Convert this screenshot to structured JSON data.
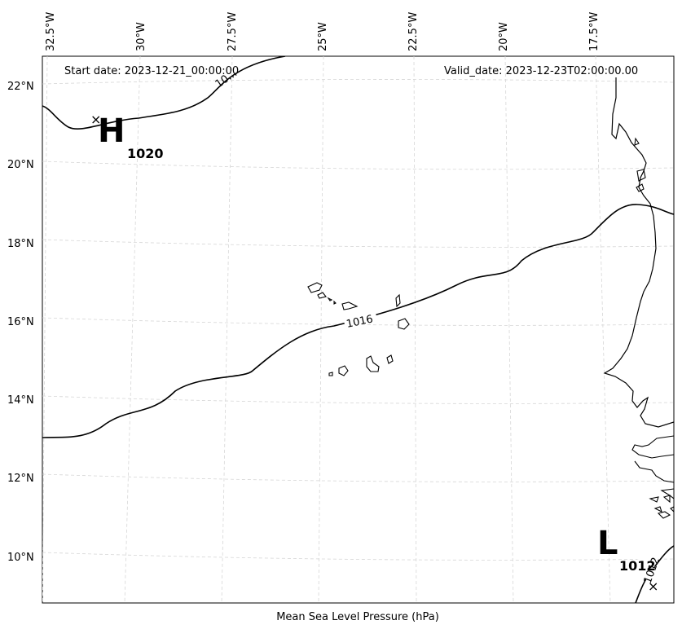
{
  "header": {
    "start_date": "Start date: 2023-12-21_00:00:00",
    "valid_date": "Valid_date: 2023-12-23T02:00:00.00"
  },
  "footer": {
    "caption": "Mean Sea Level Pressure (hPa)"
  },
  "axes": {
    "lon_labels": [
      "32.5°W",
      "30°W",
      "27.5°W",
      "25°W",
      "22.5°W",
      "20°W",
      "17.5°W"
    ],
    "lat_labels": [
      "22°N",
      "20°N",
      "18°N",
      "16°N",
      "14°N",
      "12°N",
      "10°N"
    ]
  },
  "contours": {
    "label_1016": "1016",
    "label_top": "10...",
    "label_bottom": "1012"
  },
  "systems": {
    "high": {
      "symbol": "H",
      "value": "1020",
      "marker": "×"
    },
    "low": {
      "symbol": "L",
      "value": "1012",
      "marker": "×"
    }
  },
  "colors": {
    "coast": "#000000",
    "grid": "#cccccc",
    "contour": "#000000"
  }
}
